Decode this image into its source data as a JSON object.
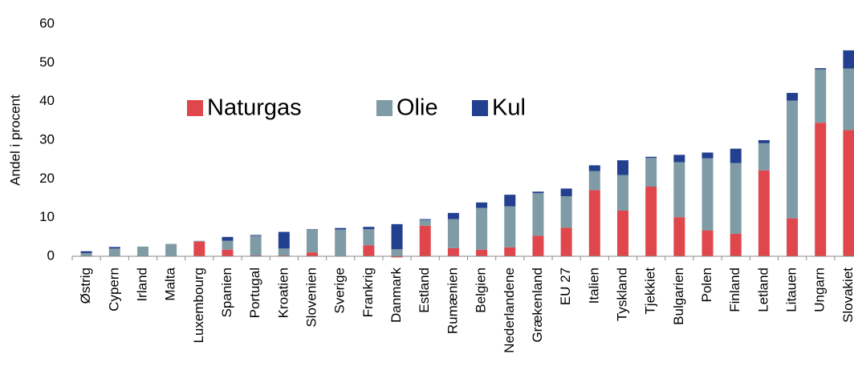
{
  "chart_data": {
    "type": "stacked_bar",
    "y_label": "Andel i procent",
    "categories": [
      "Østrig",
      "Cypern",
      "Irland",
      "Malta",
      "Luxembourg",
      "Spanien",
      "Portugal",
      "Kroatien",
      "Slovenien",
      "Sverige",
      "Frankrig",
      "Danmark",
      "Estland",
      "Rumænien",
      "Belgien",
      "Nederlandene",
      "Grækenland",
      "EU 27",
      "Italien",
      "Tyskland",
      "Tjekkiet",
      "Bulgarien",
      "Polen",
      "Finland",
      "Letland",
      "Litauen",
      "Ungarn",
      "Slovakiet"
    ],
    "series": [
      {
        "name": "Naturgas",
        "color": "#e0474c",
        "values": [
          0,
          0,
          0,
          0,
          3.8,
          1.7,
          0.2,
          0.2,
          1.0,
          0,
          2.8,
          -0.3,
          7.9,
          2.1,
          1.7,
          2.3,
          5.3,
          7.4,
          17.1,
          11.8,
          18.0,
          10.1,
          6.7,
          5.8,
          22.2,
          9.8,
          34.5,
          32.6
        ]
      },
      {
        "name": "Olie",
        "color": "#7f9ba5",
        "values": [
          0.8,
          2.0,
          2.5,
          3.2,
          0.2,
          2.3,
          5.1,
          1.8,
          5.9,
          6.9,
          4.2,
          1.8,
          1.5,
          7.5,
          10.8,
          10.6,
          11.0,
          8.1,
          4.9,
          9.2,
          7.4,
          14.2,
          18.6,
          18.3,
          7.0,
          30.4,
          13.8,
          15.9
        ]
      },
      {
        "name": "Kul",
        "color": "#233f8f",
        "values": [
          0.5,
          0.4,
          0,
          0,
          0,
          1.0,
          0.2,
          4.3,
          0.1,
          0.4,
          0.6,
          6.5,
          0.2,
          1.6,
          1.4,
          3.0,
          0.4,
          2.0,
          1.5,
          3.8,
          0.3,
          1.9,
          1.5,
          3.7,
          0.8,
          2.0,
          0.3,
          4.7
        ]
      }
    ],
    "ylim": [
      0,
      60
    ],
    "yticks": [
      0,
      10,
      20,
      30,
      40,
      50,
      60
    ],
    "grid": false
  }
}
